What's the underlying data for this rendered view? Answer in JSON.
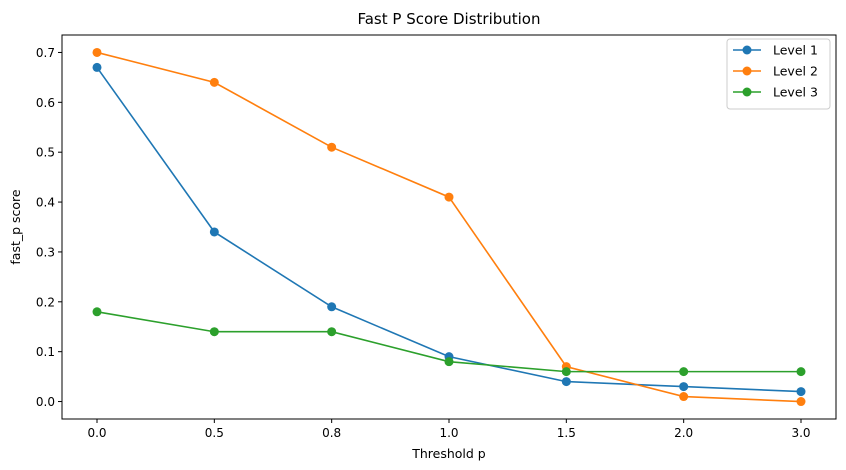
{
  "chart_data": {
    "type": "line",
    "title": "Fast P Score Distribution",
    "xlabel": "Threshold p",
    "ylabel": "fast_p score",
    "categories": [
      "0.0",
      "0.5",
      "0.8",
      "1.0",
      "1.5",
      "2.0",
      "3.0"
    ],
    "yticks": [
      "0.0",
      "0.1",
      "0.2",
      "0.3",
      "0.4",
      "0.5",
      "0.6",
      "0.7"
    ],
    "ylim": [
      -0.035,
      0.735
    ],
    "grid": false,
    "legend_position": "top-right",
    "series": [
      {
        "name": "Level 1",
        "color": "#1f77b4",
        "values": [
          0.67,
          0.34,
          0.19,
          0.09,
          0.04,
          0.03,
          0.02
        ]
      },
      {
        "name": "Level 2",
        "color": "#ff7f0e",
        "values": [
          0.7,
          0.64,
          0.51,
          0.41,
          0.07,
          0.01,
          0.0
        ]
      },
      {
        "name": "Level 3",
        "color": "#2ca02c",
        "values": [
          0.18,
          0.14,
          0.14,
          0.08,
          0.06,
          0.06,
          0.06
        ]
      }
    ]
  }
}
